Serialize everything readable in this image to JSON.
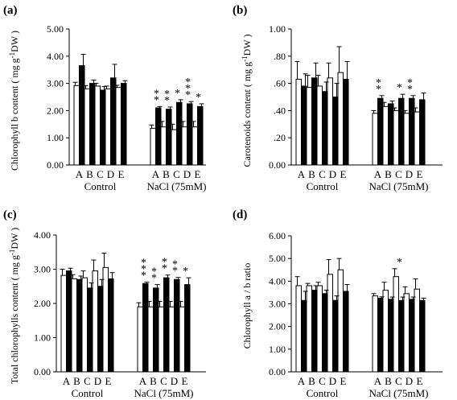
{
  "panels": [
    {
      "letter": "(a)",
      "ylabel_main": "Chlorophyll b content ( mg g",
      "ylabel_sup": "-1",
      "ylabel_tail": "DW )",
      "yticks": [
        "0.00",
        "1.00",
        "2.00",
        "3.00",
        "4.00",
        "5.00"
      ]
    },
    {
      "letter": "(b)",
      "ylabel_main": "Carotenoids content ( mg g",
      "ylabel_sup": "-1",
      "ylabel_tail": "DW )",
      "yticks": [
        "0.00",
        ".20",
        ".40",
        ".60",
        ".80",
        "1.00"
      ]
    },
    {
      "letter": "(c)",
      "ylabel_main": "Total chlorophylls content ( mg g",
      "ylabel_sup": "-1",
      "ylabel_tail": "DW )",
      "yticks": [
        "0.00",
        "1.00",
        "2.00",
        "3.00",
        "4.00"
      ]
    },
    {
      "letter": "(d)",
      "ylabel_main": "Chlorophyll a / b ratio",
      "ylabel_sup": "",
      "ylabel_tail": "",
      "yticks": [
        "0.00",
        "1.00",
        "2.00",
        "3.00",
        "4.00",
        "5.00",
        "6.00"
      ]
    }
  ],
  "chart_data": [
    {
      "type": "bar",
      "title": "(a)",
      "ylabel": "Chlorophyll b content ( mg g-1DW )",
      "ylim": [
        0,
        5
      ],
      "groups": [
        "Control",
        "NaCl (75mM)"
      ],
      "categories": [
        "A",
        "B",
        "C",
        "D",
        "E"
      ],
      "colors": {
        "open": "#ffffff",
        "filled": "#000000"
      },
      "series": [
        {
          "group": "Control",
          "fill": "open",
          "values": [
            2.92,
            2.8,
            2.9,
            2.8,
            2.85
          ],
          "errors": [
            0.12,
            0.12,
            0.1,
            0.1,
            0.08
          ]
        },
        {
          "group": "Control",
          "fill": "filled",
          "values": [
            3.65,
            3.0,
            2.75,
            3.2,
            3.0
          ],
          "errors": [
            0.42,
            0.12,
            0.13,
            0.5,
            0.1
          ]
        },
        {
          "group": "NaCl (75mM)",
          "fill": "open",
          "values": [
            1.35,
            1.4,
            1.3,
            1.4,
            1.4
          ],
          "errors": [
            0.12,
            0.2,
            0.2,
            0.2,
            0.2
          ]
        },
        {
          "group": "NaCl (75mM)",
          "fill": "filled",
          "values": [
            2.1,
            2.05,
            2.3,
            2.25,
            2.15
          ],
          "errors": [
            0.05,
            0.08,
            0.1,
            0.08,
            0.1
          ]
        }
      ],
      "significance": {
        "NaCl (75mM)": {
          "A": "**",
          "B": "**",
          "C": "*",
          "D": "***",
          "E": "*"
        }
      }
    },
    {
      "type": "bar",
      "title": "(b)",
      "ylabel": "Carotenoids content ( mg g-1DW )",
      "ylim": [
        0,
        1
      ],
      "groups": [
        "Control",
        "NaCl (75mM)"
      ],
      "categories": [
        "A",
        "B",
        "C",
        "D",
        "E"
      ],
      "colors": {
        "open": "#ffffff",
        "filled": "#000000"
      },
      "series": [
        {
          "group": "Control",
          "fill": "open",
          "values": [
            0.63,
            0.57,
            0.58,
            0.64,
            0.68
          ],
          "errors": [
            0.13,
            0.09,
            0.08,
            0.11,
            0.19
          ]
        },
        {
          "group": "Control",
          "fill": "filled",
          "values": [
            0.58,
            0.64,
            0.54,
            0.5,
            0.63
          ],
          "errors": [
            0.09,
            0.11,
            0.07,
            0.1,
            0.13
          ]
        },
        {
          "group": "NaCl (75mM)",
          "fill": "open",
          "values": [
            0.38,
            0.43,
            0.4,
            0.38,
            0.39
          ],
          "errors": [
            0.02,
            0.03,
            0.02,
            0.02,
            0.03
          ]
        },
        {
          "group": "NaCl (75mM)",
          "fill": "filled",
          "values": [
            0.49,
            0.45,
            0.49,
            0.49,
            0.48
          ],
          "errors": [
            0.02,
            0.02,
            0.03,
            0.02,
            0.05
          ]
        }
      ],
      "significance": {
        "NaCl (75mM)": {
          "A": "**",
          "C": "*",
          "D": "**"
        }
      }
    },
    {
      "type": "bar",
      "title": "(c)",
      "ylabel": "Total chlorophylls content ( mg g-1DW )",
      "ylim": [
        0,
        4
      ],
      "groups": [
        "Control",
        "NaCl (75mM)"
      ],
      "categories": [
        "A",
        "B",
        "C",
        "D",
        "E"
      ],
      "colors": {
        "open": "#ffffff",
        "filled": "#000000"
      },
      "series": [
        {
          "group": "Control",
          "fill": "open",
          "values": [
            2.82,
            2.72,
            2.75,
            2.95,
            3.05
          ],
          "errors": [
            0.18,
            0.12,
            0.2,
            0.32,
            0.42
          ]
        },
        {
          "group": "Control",
          "fill": "filled",
          "values": [
            2.95,
            2.7,
            2.45,
            2.5,
            2.72
          ],
          "errors": [
            0.08,
            0.1,
            0.15,
            0.2,
            0.18
          ]
        },
        {
          "group": "NaCl (75mM)",
          "fill": "open",
          "values": [
            1.9,
            1.9,
            1.9,
            1.9,
            1.9
          ],
          "errors": [
            0.12,
            0.16,
            0.16,
            0.16,
            0.16
          ]
        },
        {
          "group": "NaCl (75mM)",
          "fill": "filled",
          "values": [
            2.58,
            2.45,
            2.75,
            2.7,
            2.55
          ],
          "errors": [
            0.04,
            0.1,
            0.08,
            0.06,
            0.2
          ]
        }
      ],
      "significance": {
        "NaCl (75mM)": {
          "A": "***",
          "B": "**",
          "C": "**",
          "D": "**",
          "E": "*"
        }
      }
    },
    {
      "type": "bar",
      "title": "(d)",
      "ylabel": "Chlorophyll a / b ratio",
      "ylim": [
        0,
        6
      ],
      "groups": [
        "Control",
        "NaCl (75mM)"
      ],
      "categories": [
        "A",
        "B",
        "C",
        "D",
        "E"
      ],
      "colors": {
        "open": "#ffffff",
        "filled": "#000000"
      },
      "series": [
        {
          "group": "Control",
          "fill": "open",
          "values": [
            3.8,
            3.8,
            3.8,
            4.3,
            4.5
          ],
          "errors": [
            0.4,
            0.1,
            0.15,
            0.65,
            0.5
          ]
        },
        {
          "group": "Control",
          "fill": "filled",
          "values": [
            3.15,
            3.6,
            3.45,
            3.15,
            3.55
          ],
          "errors": [
            0.4,
            0.2,
            0.15,
            0.2,
            0.3
          ]
        },
        {
          "group": "NaCl (75mM)",
          "fill": "open",
          "values": [
            3.35,
            3.6,
            4.2,
            3.45,
            3.65
          ],
          "errors": [
            0.1,
            0.35,
            0.35,
            0.3,
            0.45
          ]
        },
        {
          "group": "NaCl (75mM)",
          "fill": "filled",
          "values": [
            3.25,
            3.2,
            3.15,
            3.2,
            3.15
          ],
          "errors": [
            0.06,
            0.1,
            0.15,
            0.1,
            0.1
          ]
        }
      ],
      "significance": {
        "NaCl (75mM)": {
          "C": "*"
        }
      }
    }
  ]
}
